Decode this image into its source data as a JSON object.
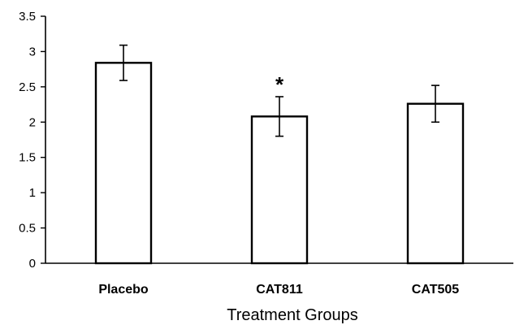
{
  "chart_data": {
    "type": "bar",
    "title": "",
    "xlabel": "Treatment Groups",
    "ylabel": "",
    "categories": [
      "Placebo",
      "CAT811",
      "CAT505"
    ],
    "values": [
      2.84,
      2.08,
      2.26
    ],
    "error": [
      0.25,
      0.28,
      0.26
    ],
    "annotations": [
      "",
      "*",
      ""
    ],
    "ylim": [
      0,
      3.5
    ],
    "yticks": [
      "0",
      "0.5",
      "1",
      "1.5",
      "2",
      "2.5",
      "3",
      "3.5"
    ],
    "grid": false,
    "legend": "none",
    "colors": {
      "bar_fill": "#ffffff",
      "bar_stroke": "#000000",
      "axis": "#000000"
    }
  }
}
